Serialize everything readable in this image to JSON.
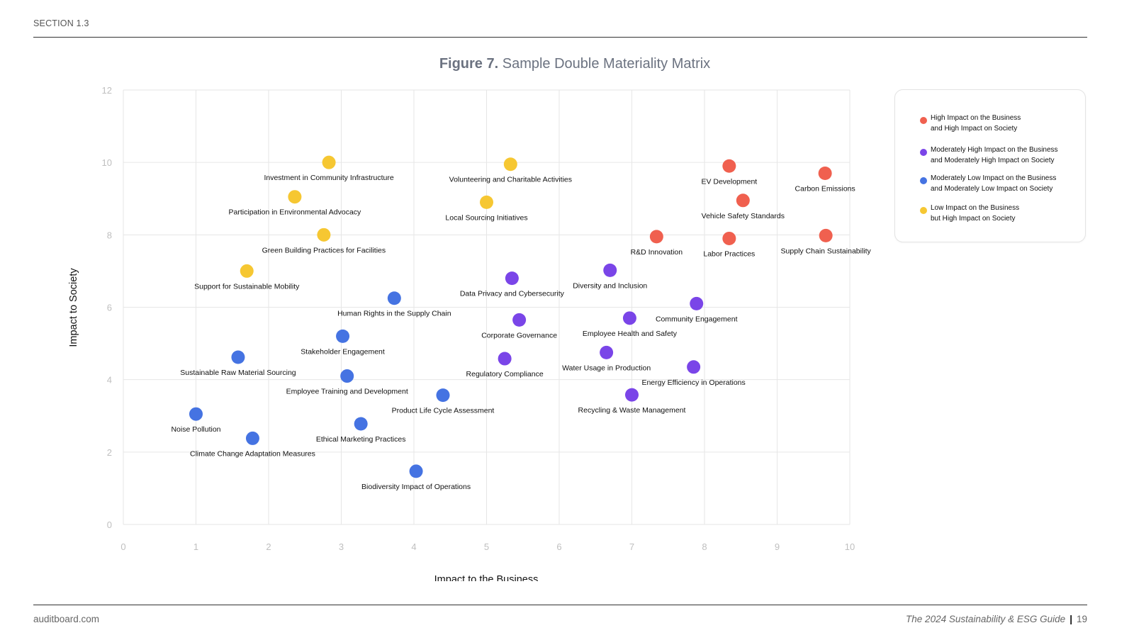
{
  "header": {
    "section": "SECTION 1.3"
  },
  "figure": {
    "number": "Figure 7.",
    "title": "Sample Double Materiality Matrix"
  },
  "footer": {
    "site": "auditboard.com",
    "guide": "The 2024 Sustainability & ESG Guide",
    "separator": "|",
    "page": "19"
  },
  "legend": {
    "items": [
      {
        "key": "high",
        "color": "#f0604f",
        "line1": "High Impact on the Business",
        "line2": "and High Impact on Society"
      },
      {
        "key": "mod_high",
        "color": "#7a45e8",
        "line1": "Moderately High Impact on the Business",
        "line2": "and Moderately High Impact on Society"
      },
      {
        "key": "mod_low",
        "color": "#4573e2",
        "line1": "Moderately Low Impact on the Business",
        "line2": "and Moderately Low Impact on Society"
      },
      {
        "key": "low",
        "color": "#f6c732",
        "line1": "Low Impact on the Business",
        "line2": "but High Impact on Society"
      }
    ]
  },
  "chart_data": {
    "type": "scatter",
    "xlabel": "Impact to the Business",
    "ylabel": "Impact to Society",
    "xlim": [
      0,
      10
    ],
    "ylim": [
      0,
      12
    ],
    "xticks": [
      0,
      1,
      2,
      3,
      4,
      5,
      6,
      7,
      8,
      9,
      10
    ],
    "yticks": [
      0,
      2,
      4,
      6,
      8,
      10,
      12
    ],
    "grid": true,
    "legend_position": "right",
    "category_colors": {
      "high": "#f0604f",
      "mod_high": "#7a45e8",
      "mod_low": "#4573e2",
      "low": "#f6c732"
    },
    "points": [
      {
        "label": "Investment in Community Infrastructure",
        "x": 2.83,
        "y": 10.0,
        "category": "low"
      },
      {
        "label": "Volunteering and Charitable Activities",
        "x": 5.33,
        "y": 9.95,
        "category": "low"
      },
      {
        "label": "Participation in Environmental Advocacy",
        "x": 2.36,
        "y": 9.05,
        "category": "low"
      },
      {
        "label": "Local Sourcing Initiatives",
        "x": 5.0,
        "y": 8.9,
        "category": "low"
      },
      {
        "label": "Green Building Practices for Facilities",
        "x": 2.76,
        "y": 8.0,
        "category": "low"
      },
      {
        "label": "Support for Sustainable Mobility",
        "x": 1.7,
        "y": 7.0,
        "category": "low"
      },
      {
        "label": "EV Development",
        "x": 8.34,
        "y": 9.9,
        "category": "high"
      },
      {
        "label": "Carbon Emissions",
        "x": 9.66,
        "y": 9.7,
        "category": "high"
      },
      {
        "label": "Vehicle Safety Standards",
        "x": 8.53,
        "y": 8.95,
        "category": "high"
      },
      {
        "label": "R&D Innovation",
        "x": 7.34,
        "y": 7.95,
        "category": "high"
      },
      {
        "label": "Labor Practices",
        "x": 8.34,
        "y": 7.9,
        "category": "high"
      },
      {
        "label": "Supply Chain Sustainability",
        "x": 9.67,
        "y": 7.98,
        "category": "high"
      },
      {
        "label": "Data Privacy and Cybersecurity",
        "x": 5.35,
        "y": 6.8,
        "category": "mod_high"
      },
      {
        "label": "Diversity and Inclusion",
        "x": 6.7,
        "y": 7.02,
        "category": "mod_high"
      },
      {
        "label": "Community Engagement",
        "x": 7.89,
        "y": 6.1,
        "category": "mod_high"
      },
      {
        "label": "Corporate Governance",
        "x": 5.45,
        "y": 5.65,
        "category": "mod_high"
      },
      {
        "label": "Employee Health and Safety",
        "x": 6.97,
        "y": 5.7,
        "category": "mod_high"
      },
      {
        "label": "Regulatory Compliance",
        "x": 5.25,
        "y": 4.58,
        "category": "mod_high"
      },
      {
        "label": "Water Usage in Production",
        "x": 6.65,
        "y": 4.75,
        "category": "mod_high"
      },
      {
        "label": "Energy Efficiency in Operations",
        "x": 7.85,
        "y": 4.35,
        "category": "mod_high"
      },
      {
        "label": "Recycling & Waste Management",
        "x": 7.0,
        "y": 3.58,
        "category": "mod_high"
      },
      {
        "label": "Human Rights in the Supply Chain",
        "x": 3.73,
        "y": 6.25,
        "category": "mod_low"
      },
      {
        "label": "Stakeholder Engagement",
        "x": 3.02,
        "y": 5.2,
        "category": "mod_low"
      },
      {
        "label": "Sustainable Raw Material Sourcing",
        "x": 1.58,
        "y": 4.62,
        "category": "mod_low"
      },
      {
        "label": "Employee Training and Development",
        "x": 3.08,
        "y": 4.1,
        "category": "mod_low"
      },
      {
        "label": "Product Life Cycle Assessment",
        "x": 4.4,
        "y": 3.57,
        "category": "mod_low"
      },
      {
        "label": "Noise Pollution",
        "x": 1.0,
        "y": 3.05,
        "category": "mod_low"
      },
      {
        "label": "Ethical Marketing Practices",
        "x": 3.27,
        "y": 2.78,
        "category": "mod_low"
      },
      {
        "label": "Climate Change Adaptation Measures",
        "x": 1.78,
        "y": 2.38,
        "category": "mod_low"
      },
      {
        "label": "Biodiversity Impact of Operations",
        "x": 4.03,
        "y": 1.47,
        "category": "mod_low"
      }
    ]
  }
}
